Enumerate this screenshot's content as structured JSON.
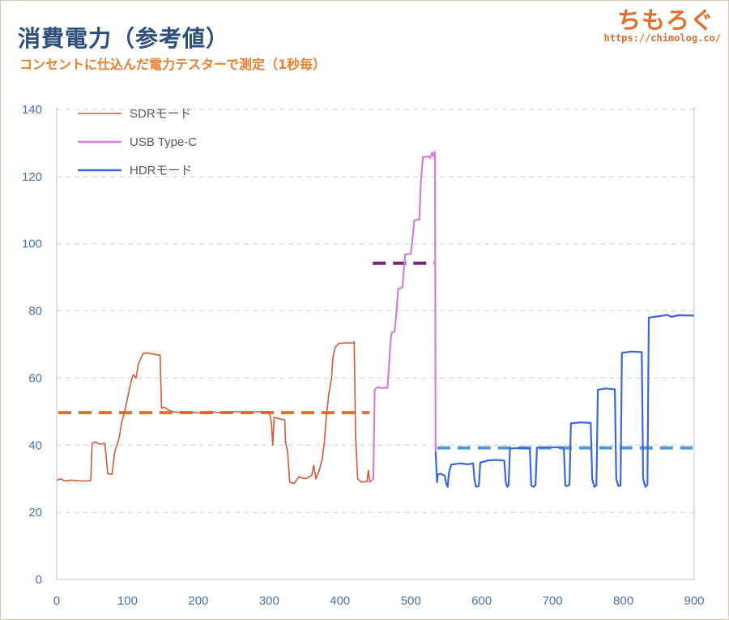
{
  "header": {
    "title": "消費電力（参考値）",
    "subtitle": "コンセントに仕込んだ電力テスターで測定（1秒毎）"
  },
  "brand": {
    "name": "ちもろぐ",
    "url": "https://chimolog.co/"
  },
  "chart_data": {
    "type": "line",
    "title": "消費電力（参考値）",
    "subtitle": "コンセントに仕込んだ電力テスターで測定（1秒毎）",
    "xlabel": "",
    "ylabel": "",
    "xlim": [
      0,
      900
    ],
    "ylim": [
      0,
      140
    ],
    "x_ticks": [
      0,
      100,
      200,
      300,
      400,
      500,
      600,
      700,
      800,
      900
    ],
    "y_ticks": [
      0,
      20,
      40,
      60,
      80,
      100,
      120,
      140
    ],
    "grid": "horizontal-dashed",
    "legend_position": "top-left",
    "series": [
      {
        "name": "SDRモード",
        "color": "#d9573a",
        "points": [
          [
            0,
            29.5
          ],
          [
            5,
            30
          ],
          [
            12,
            29.3
          ],
          [
            20,
            29.6
          ],
          [
            30,
            29.4
          ],
          [
            40,
            29.3
          ],
          [
            48,
            29.5
          ],
          [
            50,
            40.5
          ],
          [
            55,
            41
          ],
          [
            60,
            40.3
          ],
          [
            68,
            40.5
          ],
          [
            72,
            31.5
          ],
          [
            78,
            31.3
          ],
          [
            82,
            38
          ],
          [
            88,
            42
          ],
          [
            92,
            47
          ],
          [
            96,
            50
          ],
          [
            100,
            54
          ],
          [
            104,
            58
          ],
          [
            108,
            61
          ],
          [
            112,
            60
          ],
          [
            115,
            64
          ],
          [
            119,
            66
          ],
          [
            122,
            67.3
          ],
          [
            128,
            67.5
          ],
          [
            134,
            67.2
          ],
          [
            140,
            67
          ],
          [
            146,
            66.8
          ],
          [
            148,
            51
          ],
          [
            152,
            51.3
          ],
          [
            160,
            50.2
          ],
          [
            170,
            49.8
          ],
          [
            185,
            50
          ],
          [
            200,
            49.6
          ],
          [
            215,
            50
          ],
          [
            230,
            49.7
          ],
          [
            250,
            50
          ],
          [
            270,
            49.8
          ],
          [
            290,
            50
          ],
          [
            300,
            50
          ],
          [
            303,
            47
          ],
          [
            305,
            40
          ],
          [
            307,
            48.3
          ],
          [
            312,
            48
          ],
          [
            322,
            47.5
          ],
          [
            323,
            41
          ],
          [
            326,
            38
          ],
          [
            329,
            29
          ],
          [
            335,
            28.6
          ],
          [
            342,
            30.5
          ],
          [
            352,
            30
          ],
          [
            360,
            31
          ],
          [
            363,
            34
          ],
          [
            366,
            30
          ],
          [
            370,
            32
          ],
          [
            375,
            36
          ],
          [
            378,
            41
          ],
          [
            380,
            47
          ],
          [
            384,
            55
          ],
          [
            388,
            60
          ],
          [
            390,
            66
          ],
          [
            393,
            69
          ],
          [
            398,
            70.3
          ],
          [
            408,
            70.5
          ],
          [
            418,
            70.4
          ],
          [
            420,
            70.8
          ],
          [
            422,
            43
          ],
          [
            425,
            30
          ],
          [
            430,
            29
          ],
          [
            438,
            29.2
          ],
          [
            440,
            32.5
          ],
          [
            442,
            29
          ],
          [
            444,
            29.4
          ]
        ]
      },
      {
        "name": "USB Type-C",
        "color": "#d77be0",
        "points": [
          [
            444,
            29.4
          ],
          [
            447,
            30
          ],
          [
            449,
            56.5
          ],
          [
            453,
            57.3
          ],
          [
            460,
            57
          ],
          [
            467,
            57.1
          ],
          [
            469,
            63
          ],
          [
            471,
            70
          ],
          [
            473,
            73.5
          ],
          [
            477,
            73.7
          ],
          [
            480,
            80
          ],
          [
            482,
            86.5
          ],
          [
            488,
            87
          ],
          [
            490,
            92
          ],
          [
            492,
            96.8
          ],
          [
            500,
            97
          ],
          [
            502,
            101
          ],
          [
            505,
            107
          ],
          [
            512,
            107.2
          ],
          [
            514,
            118
          ],
          [
            517,
            125.8
          ],
          [
            525,
            126
          ],
          [
            527,
            125.5
          ],
          [
            530,
            127.2
          ],
          [
            532,
            126
          ],
          [
            534,
            127.3
          ],
          [
            535,
            38
          ]
        ]
      },
      {
        "name": "HDRモード",
        "color": "#3a66e0",
        "points": [
          [
            535,
            38
          ],
          [
            537,
            29
          ],
          [
            538,
            31.2
          ],
          [
            542,
            31.5
          ],
          [
            548,
            30.9
          ],
          [
            550,
            28.5
          ],
          [
            552,
            27.6
          ],
          [
            554,
            32
          ],
          [
            557,
            34.2
          ],
          [
            570,
            34.6
          ],
          [
            580,
            34.3
          ],
          [
            588,
            34.6
          ],
          [
            590,
            29.5
          ],
          [
            592,
            27.6
          ],
          [
            596,
            27.8
          ],
          [
            598,
            34.8
          ],
          [
            610,
            35.5
          ],
          [
            622,
            35.6
          ],
          [
            632,
            35.4
          ],
          [
            634,
            29
          ],
          [
            636,
            27.6
          ],
          [
            638,
            28
          ],
          [
            640,
            39
          ],
          [
            660,
            39.2
          ],
          [
            668,
            39
          ],
          [
            670,
            28
          ],
          [
            673,
            27.6
          ],
          [
            676,
            28
          ],
          [
            678,
            39.3
          ],
          [
            710,
            39.4
          ],
          [
            716,
            39.2
          ],
          [
            718,
            28
          ],
          [
            721,
            27.8
          ],
          [
            724,
            28.3
          ],
          [
            726,
            46.5
          ],
          [
            740,
            46.8
          ],
          [
            754,
            46.6
          ],
          [
            756,
            30
          ],
          [
            759,
            27.6
          ],
          [
            762,
            28
          ],
          [
            764,
            56.5
          ],
          [
            775,
            56.9
          ],
          [
            788,
            56.6
          ],
          [
            790,
            30
          ],
          [
            793,
            27.8
          ],
          [
            796,
            28
          ],
          [
            798,
            67.5
          ],
          [
            812,
            67.9
          ],
          [
            826,
            67.7
          ],
          [
            828,
            30
          ],
          [
            831,
            27.6
          ],
          [
            834,
            28.2
          ],
          [
            836,
            78
          ],
          [
            850,
            78.4
          ],
          [
            862,
            78.8
          ],
          [
            868,
            78.2
          ],
          [
            878,
            78.7
          ],
          [
            900,
            78.6
          ]
        ]
      }
    ],
    "averages": [
      {
        "color": "#e3702c",
        "value": 49.7,
        "x_start": 0,
        "x_end": 444
      },
      {
        "color": "#7b2476",
        "value": 94.2,
        "x_start": 444,
        "x_end": 535
      },
      {
        "color": "#4f9ad6",
        "value": 39.2,
        "x_start": 535,
        "x_end": 900
      }
    ]
  }
}
